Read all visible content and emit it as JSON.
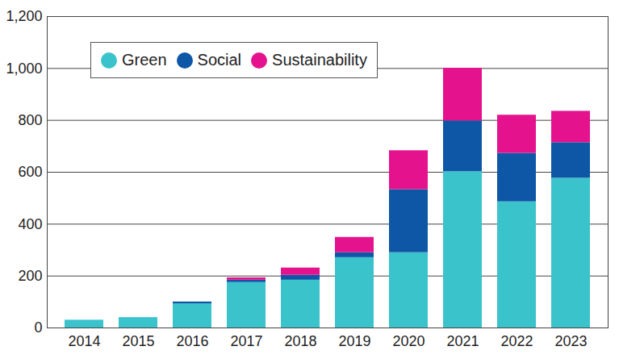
{
  "chart_data": {
    "type": "bar",
    "stacked": true,
    "grid": true,
    "legend": "upper left",
    "categories": [
      "2014",
      "2015",
      "2016",
      "2017",
      "2018",
      "2019",
      "2020",
      "2021",
      "2022",
      "2023"
    ],
    "series": [
      {
        "name": "Green",
        "color": "#3bc3cc",
        "values": [
          30,
          40,
          93,
          175,
          184,
          271,
          290,
          602,
          486,
          577
        ]
      },
      {
        "name": "Social",
        "color": "#0d57a6",
        "values": [
          0,
          0,
          7,
          9,
          19,
          19,
          243,
          196,
          187,
          137
        ]
      },
      {
        "name": "Sustainability",
        "color": "#e5128e",
        "values": [
          0,
          0,
          0,
          9,
          28,
          59,
          150,
          203,
          147,
          121
        ]
      }
    ],
    "ylim": [
      0,
      1200
    ],
    "yticks": [
      0,
      200,
      400,
      600,
      800,
      {
        "value": 1000,
        "label": "1,000"
      },
      {
        "value": 1200,
        "label": "1,200"
      }
    ]
  }
}
